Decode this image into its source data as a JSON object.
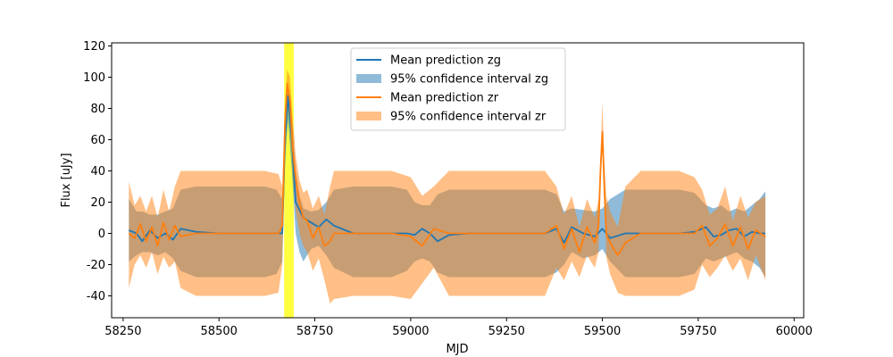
{
  "chart_data": {
    "type": "line",
    "title": "",
    "xlabel": "MJD",
    "ylabel": "Flux [uJy]",
    "xlim": [
      58220,
      60025
    ],
    "ylim": [
      -54,
      122
    ],
    "xticks": [
      58250,
      58500,
      58750,
      59000,
      59250,
      59500,
      59750,
      60000
    ],
    "yticks": [
      -40,
      -20,
      0,
      20,
      40,
      60,
      80,
      100,
      120
    ],
    "grid": false,
    "legend_position": "top-center",
    "highlight_span": {
      "x0": 58670,
      "x1": 58695,
      "color": "#ffff00"
    },
    "series": [
      {
        "name": "Mean prediction zg",
        "kind": "line",
        "color": "#1f77b4",
        "x": [
          58265,
          58285,
          58300,
          58320,
          58340,
          58360,
          58380,
          58400,
          58440,
          58500,
          58560,
          58620,
          58650,
          58665,
          58672,
          58680,
          58690,
          58700,
          58710,
          58720,
          58740,
          58760,
          58780,
          58800,
          58850,
          58900,
          58950,
          58990,
          59010,
          59030,
          59050,
          59070,
          59100,
          59150,
          59200,
          59260,
          59300,
          59350,
          59380,
          59400,
          59420,
          59450,
          59480,
          59500,
          59520,
          59560,
          59600,
          59650,
          59700,
          59740,
          59770,
          59790,
          59810,
          59830,
          59850,
          59870,
          59890,
          59910,
          59925
        ],
        "y": [
          2,
          0,
          -5,
          2,
          -3,
          0,
          -4,
          3,
          1,
          0,
          0,
          0,
          0,
          0,
          60,
          88,
          60,
          20,
          15,
          10,
          7,
          4,
          9,
          5,
          0,
          0,
          0,
          0,
          -1,
          3,
          0,
          -5,
          -1,
          0,
          0,
          0,
          0,
          0,
          3,
          -6,
          4,
          0,
          -2,
          3,
          -3,
          0,
          0,
          0,
          0,
          1,
          4,
          -2,
          -1,
          2,
          3,
          -2,
          1,
          0,
          0
        ]
      },
      {
        "name": "95% confidence interval zg",
        "kind": "band",
        "color": "#1f77b4",
        "x": [
          58265,
          58285,
          58300,
          58320,
          58340,
          58360,
          58380,
          58400,
          58440,
          58500,
          58560,
          58620,
          58650,
          58665,
          58672,
          58680,
          58690,
          58700,
          58710,
          58720,
          58740,
          58760,
          58780,
          58800,
          58850,
          58900,
          58950,
          58990,
          59010,
          59030,
          59050,
          59070,
          59100,
          59150,
          59200,
          59260,
          59300,
          59350,
          59380,
          59400,
          59420,
          59450,
          59480,
          59500,
          59520,
          59560,
          59600,
          59650,
          59700,
          59740,
          59770,
          59790,
          59810,
          59830,
          59850,
          59870,
          59890,
          59910,
          59925
        ],
        "lower": [
          -18,
          -14,
          -12,
          -12,
          -14,
          -12,
          -16,
          -24,
          -28,
          -28,
          -28,
          -28,
          -26,
          -18,
          45,
          72,
          40,
          0,
          -12,
          -18,
          -10,
          -8,
          -14,
          -22,
          -28,
          -28,
          -28,
          -24,
          -18,
          -16,
          -18,
          -25,
          -28,
          -28,
          -28,
          -28,
          -28,
          -28,
          -25,
          -20,
          -12,
          -16,
          -14,
          -10,
          -18,
          -28,
          -28,
          -28,
          -28,
          -26,
          -16,
          -18,
          -16,
          -14,
          -12,
          -16,
          -18,
          -22,
          -28
        ],
        "upper": [
          22,
          14,
          14,
          12,
          12,
          14,
          16,
          28,
          30,
          30,
          30,
          30,
          28,
          22,
          70,
          95,
          75,
          40,
          24,
          16,
          14,
          15,
          20,
          28,
          30,
          30,
          30,
          28,
          20,
          18,
          18,
          25,
          28,
          28,
          28,
          28,
          28,
          28,
          25,
          14,
          16,
          15,
          14,
          16,
          22,
          28,
          28,
          28,
          28,
          26,
          18,
          16,
          18,
          14,
          16,
          14,
          18,
          22,
          27
        ]
      },
      {
        "name": "Mean prediction zr",
        "kind": "line",
        "color": "#ff7f0e",
        "x": [
          58265,
          58280,
          58295,
          58310,
          58325,
          58340,
          58355,
          58370,
          58385,
          58400,
          58440,
          58500,
          58560,
          58620,
          58655,
          58665,
          58672,
          58678,
          58685,
          58692,
          58700,
          58710,
          58720,
          58730,
          58745,
          58760,
          58775,
          58790,
          58800,
          58850,
          58900,
          58950,
          59000,
          59030,
          59060,
          59100,
          59150,
          59200,
          59260,
          59300,
          59350,
          59380,
          59400,
          59420,
          59440,
          59460,
          59480,
          59490,
          59495,
          59500,
          59505,
          59510,
          59520,
          59540,
          59560,
          59600,
          59650,
          59700,
          59740,
          59760,
          59780,
          59800,
          59820,
          59840,
          59860,
          59880,
          59900,
          59925
        ],
        "y": [
          0,
          -3,
          6,
          -5,
          4,
          -8,
          7,
          -4,
          5,
          -2,
          0,
          0,
          0,
          0,
          0,
          5,
          70,
          96,
          85,
          55,
          35,
          20,
          10,
          8,
          -3,
          4,
          -8,
          -5,
          0,
          0,
          0,
          0,
          -2,
          -8,
          3,
          0,
          0,
          0,
          0,
          0,
          0,
          5,
          -10,
          3,
          -12,
          4,
          -6,
          5,
          40,
          65,
          30,
          0,
          -6,
          -14,
          -6,
          0,
          0,
          0,
          0,
          5,
          -8,
          -3,
          6,
          -8,
          4,
          -10,
          2,
          -2
        ]
      },
      {
        "name": "95% confidence interval zr",
        "kind": "band",
        "color": "#ff7f0e",
        "x": [
          58265,
          58280,
          58295,
          58310,
          58325,
          58340,
          58355,
          58370,
          58385,
          58400,
          58440,
          58500,
          58560,
          58620,
          58655,
          58665,
          58672,
          58678,
          58685,
          58692,
          58700,
          58710,
          58720,
          58730,
          58745,
          58760,
          58775,
          58790,
          58800,
          58850,
          58900,
          58950,
          59000,
          59030,
          59060,
          59100,
          59150,
          59200,
          59260,
          59300,
          59350,
          59380,
          59400,
          59420,
          59440,
          59460,
          59480,
          59490,
          59495,
          59500,
          59505,
          59510,
          59520,
          59540,
          59560,
          59600,
          59650,
          59700,
          59740,
          59760,
          59780,
          59800,
          59820,
          59840,
          59860,
          59880,
          59900,
          59925
        ],
        "lower": [
          -35,
          -20,
          -14,
          -22,
          -12,
          -26,
          -15,
          -22,
          -18,
          -35,
          -40,
          -40,
          -40,
          -40,
          -38,
          -20,
          60,
          85,
          70,
          40,
          15,
          0,
          -8,
          -12,
          -24,
          -16,
          -30,
          -45,
          -42,
          -40,
          -40,
          -40,
          -42,
          -32,
          -22,
          -40,
          -40,
          -40,
          -40,
          -40,
          -40,
          -22,
          -30,
          -18,
          -28,
          -14,
          -22,
          -12,
          30,
          55,
          20,
          -15,
          -26,
          -38,
          -40,
          -40,
          -40,
          -40,
          -36,
          -20,
          -28,
          -22,
          -14,
          -24,
          -16,
          -30,
          -14,
          -30
        ],
        "upper": [
          33,
          18,
          24,
          14,
          24,
          10,
          28,
          14,
          30,
          40,
          40,
          40,
          40,
          40,
          38,
          30,
          82,
          105,
          100,
          75,
          50,
          34,
          26,
          28,
          16,
          24,
          12,
          30,
          40,
          40,
          40,
          40,
          36,
          24,
          30,
          40,
          40,
          40,
          40,
          40,
          40,
          30,
          12,
          24,
          4,
          22,
          10,
          22,
          50,
          84,
          46,
          24,
          14,
          4,
          30,
          40,
          40,
          40,
          36,
          28,
          12,
          16,
          30,
          8,
          24,
          10,
          20,
          24
        ]
      }
    ]
  },
  "legend": {
    "items": [
      {
        "label": "Mean prediction zg",
        "kind": "line",
        "color": "#1f77b4"
      },
      {
        "label": "95% confidence interval zg",
        "kind": "patch",
        "color": "#1f77b4"
      },
      {
        "label": "Mean prediction zr",
        "kind": "line",
        "color": "#ff7f0e"
      },
      {
        "label": "95% confidence interval zr",
        "kind": "patch",
        "color": "#ff7f0e"
      }
    ]
  }
}
